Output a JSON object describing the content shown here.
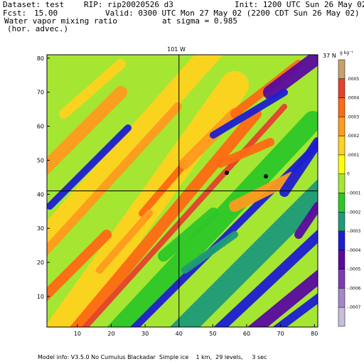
{
  "header": {
    "dataset": "Dataset: test",
    "rip": "RIP: rip20020526 d3",
    "init": "Init: 1200 UTC Sun 26 May 02",
    "fcst": "Fcst:",
    "fcst_value": "15.00",
    "valid": "Valid: 0300 UTC Mon 27 May 02 (2200 CDT Sun 26 May 02)",
    "field_name": "Water vapor mixing ratio",
    "field_sub": "(hor. advec.)",
    "level": "at sigma = 0.985"
  },
  "map": {
    "top_label": "101 W",
    "right_label": "37 N",
    "x_ticks": [
      "10",
      "20",
      "30",
      "40",
      "50",
      "60",
      "70",
      "80"
    ],
    "y_ticks": [
      "10",
      "20",
      "30",
      "40",
      "50",
      "60",
      "70",
      "80"
    ],
    "x_range": [
      1,
      81
    ],
    "y_range": [
      1,
      81
    ]
  },
  "colorbar": {
    "unit": "g kg⁻¹",
    "labels": [
      ".0005",
      ".0004",
      ".0003",
      ".0002",
      ".0001",
      "0",
      "-.0001",
      "-.0002",
      "-.0003",
      "-.0004",
      "-.0005",
      "-.0006",
      "-.0007"
    ],
    "colors": [
      "#c8a06b",
      "#e6412d",
      "#ff6a14",
      "#ff9b1e",
      "#ffd21e",
      "#ffff00",
      "#a5e632",
      "#2dc828",
      "#1e9b78",
      "#1e1ed2",
      "#5a0aa0",
      "#7d3cb4",
      "#a587c8",
      "#c8bedc"
    ]
  },
  "footer": "Model info: V3.5.0 No Cumulus Blackadar  Simple ice    1 km,  29 levels,     3 sec"
}
